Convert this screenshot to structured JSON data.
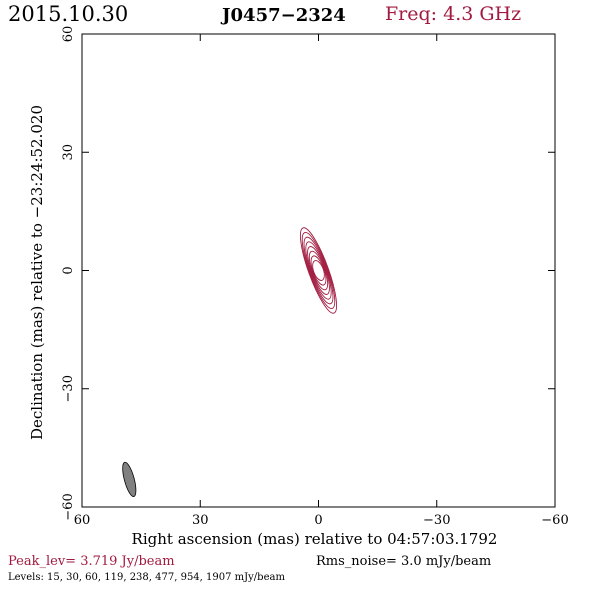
{
  "header": {
    "date": "2015.10.30",
    "source": "J0457−2324",
    "freq": "Freq: 4.3 GHz"
  },
  "footer": {
    "peak": "Peak_lev=  3.719 Jy/beam",
    "rms": "Rms_noise=  3.0 mJy/beam",
    "levels": "Levels:  15,  30,  60, 119, 238, 477, 954, 1907 mJy/beam"
  },
  "colors": {
    "contour": "#a11a3f",
    "beam": "#808080",
    "axis": "#000000"
  },
  "chart_data": {
    "type": "contour",
    "xlabel": "Right ascension (mas) relative to 04:57:03.1792",
    "ylabel": "Declination (mas) relative to −23:24:52.020",
    "xlim": [
      60,
      -60
    ],
    "ylim": [
      -60,
      60
    ],
    "xticks": [
      60,
      30,
      0,
      -30,
      -60
    ],
    "yticks": [
      -60,
      -30,
      0,
      30,
      60
    ],
    "xtick_labels": [
      "60",
      "30",
      "0",
      "−30",
      "−60"
    ],
    "ytick_labels": [
      "−60",
      "−30",
      "0",
      "30",
      "60"
    ],
    "contour_levels_mJy": [
      15,
      30,
      60,
      119,
      238,
      477,
      954,
      1907
    ],
    "source_component": {
      "center": [
        0,
        0
      ],
      "outer_major_mas": 23,
      "outer_minor_mas": 5,
      "pa_deg": 20
    },
    "beam": {
      "center": [
        48,
        -53
      ],
      "major_mas": 9,
      "minor_mas": 2.5,
      "pa_deg": 15
    }
  }
}
